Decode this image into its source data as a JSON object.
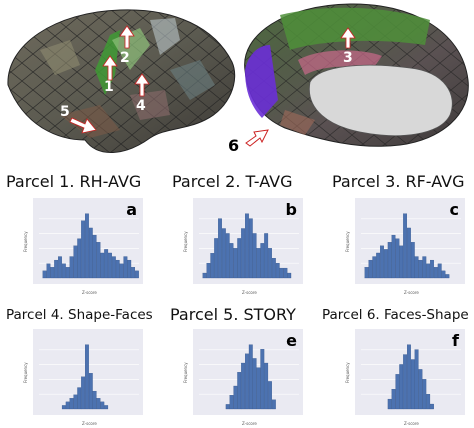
{
  "brain_figure": {
    "arrow_labels": [
      "1",
      "2",
      "3",
      "4",
      "5",
      "6"
    ],
    "colors": {
      "arrow_fill": "#ffffff",
      "arrow_outline": "#cc2222",
      "highlight_violet": "#6a2fd6",
      "medial_wall": "#d8d8d8"
    }
  },
  "panels": [
    {
      "title": "Parcel 1. RH-AVG",
      "letter": "a",
      "ylabel": "Frequency",
      "xlabel": "Z-score"
    },
    {
      "title": "Parcel 2. T-AVG",
      "letter": "b",
      "ylabel": "Frequency",
      "xlabel": "Z-score"
    },
    {
      "title": "Parcel 3. RF-AVG",
      "letter": "c",
      "ylabel": "Frequency",
      "xlabel": "Z-score"
    },
    {
      "title": "Parcel 4. Shape-Faces",
      "letter": "",
      "ylabel": "Frequency",
      "xlabel": "Z-score"
    },
    {
      "title": "Parcel 5. STORY",
      "letter": "e",
      "ylabel": "Frequency",
      "xlabel": "Z-score"
    },
    {
      "title": "Parcel 6. Faces-Shape",
      "letter": "f",
      "ylabel": "Frequency",
      "xlabel": "Z-score"
    }
  ],
  "chart_data": [
    {
      "type": "bar",
      "title": "Parcel 1. RH-AVG",
      "xlabel": "Z-score",
      "ylabel": "Frequency",
      "bar_color": "#4c72b0",
      "x": [
        -2.0,
        -1.8,
        -1.6,
        -1.4,
        -1.2,
        -1.0,
        -0.8,
        -0.6,
        -0.4,
        -0.2,
        0.0,
        0.2,
        0.4,
        0.6,
        0.8,
        1.0,
        1.2,
        1.4,
        1.6,
        1.8,
        2.0,
        2.2,
        2.4,
        2.6,
        2.8
      ],
      "values": [
        2,
        4,
        3,
        5,
        6,
        4,
        3,
        6,
        9,
        11,
        16,
        18,
        14,
        12,
        10,
        7,
        8,
        7,
        6,
        5,
        4,
        6,
        5,
        3,
        2
      ]
    },
    {
      "type": "bar",
      "title": "Parcel 2. T-AVG",
      "xlabel": "Z-score",
      "ylabel": "Frequency",
      "bar_color": "#4c72b0",
      "x": [
        -2.0,
        -1.8,
        -1.6,
        -1.4,
        -1.2,
        -1.0,
        -0.8,
        -0.6,
        -0.4,
        -0.2,
        0.0,
        0.2,
        0.4,
        0.6,
        0.8,
        1.0,
        1.2,
        1.4,
        1.6,
        1.8,
        2.0,
        2.2,
        2.4
      ],
      "values": [
        1,
        3,
        5,
        8,
        12,
        10,
        9,
        7,
        6,
        8,
        10,
        13,
        12,
        9,
        6,
        7,
        9,
        6,
        4,
        3,
        2,
        2,
        1
      ]
    },
    {
      "type": "bar",
      "title": "Parcel 3. RF-AVG",
      "xlabel": "Z-score",
      "ylabel": "Frequency",
      "bar_color": "#4c72b0",
      "x": [
        -2.0,
        -1.8,
        -1.6,
        -1.4,
        -1.2,
        -1.0,
        -0.8,
        -0.6,
        -0.4,
        -0.2,
        0.0,
        0.2,
        0.4,
        0.6,
        0.8,
        1.0,
        1.2,
        1.4,
        1.6,
        1.8,
        2.0,
        2.2
      ],
      "values": [
        3,
        5,
        6,
        7,
        9,
        8,
        10,
        12,
        11,
        9,
        18,
        14,
        10,
        6,
        5,
        6,
        4,
        5,
        3,
        4,
        2,
        1
      ]
    },
    {
      "type": "bar",
      "title": "Parcel 4. Shape-Faces",
      "xlabel": "Z-score",
      "ylabel": "Frequency",
      "bar_color": "#4c72b0",
      "x": [
        -1.0,
        -0.8,
        -0.6,
        -0.4,
        -0.2,
        0.0,
        0.2,
        0.4,
        0.6,
        0.8,
        1.0,
        1.2
      ],
      "values": [
        1,
        2,
        3,
        4,
        6,
        9,
        18,
        10,
        5,
        3,
        2,
        1
      ]
    },
    {
      "type": "bar",
      "title": "Parcel 5. STORY",
      "xlabel": "Z-score",
      "ylabel": "Frequency",
      "bar_color": "#4c72b0",
      "x": [
        -0.8,
        -0.6,
        -0.4,
        -0.2,
        0.0,
        0.2,
        0.4,
        0.6,
        0.8,
        1.0,
        1.2,
        1.4,
        1.6
      ],
      "values": [
        1,
        3,
        5,
        8,
        10,
        12,
        14,
        11,
        9,
        13,
        10,
        6,
        2
      ]
    },
    {
      "type": "bar",
      "title": "Parcel 6. Faces-Shape",
      "xlabel": "Z-score",
      "ylabel": "Frequency",
      "bar_color": "#4c72b0",
      "x": [
        -0.8,
        -0.6,
        -0.4,
        -0.2,
        0.0,
        0.2,
        0.4,
        0.6,
        0.8,
        1.0,
        1.2,
        1.4
      ],
      "values": [
        2,
        4,
        7,
        9,
        11,
        13,
        10,
        12,
        8,
        6,
        3,
        1
      ]
    }
  ]
}
